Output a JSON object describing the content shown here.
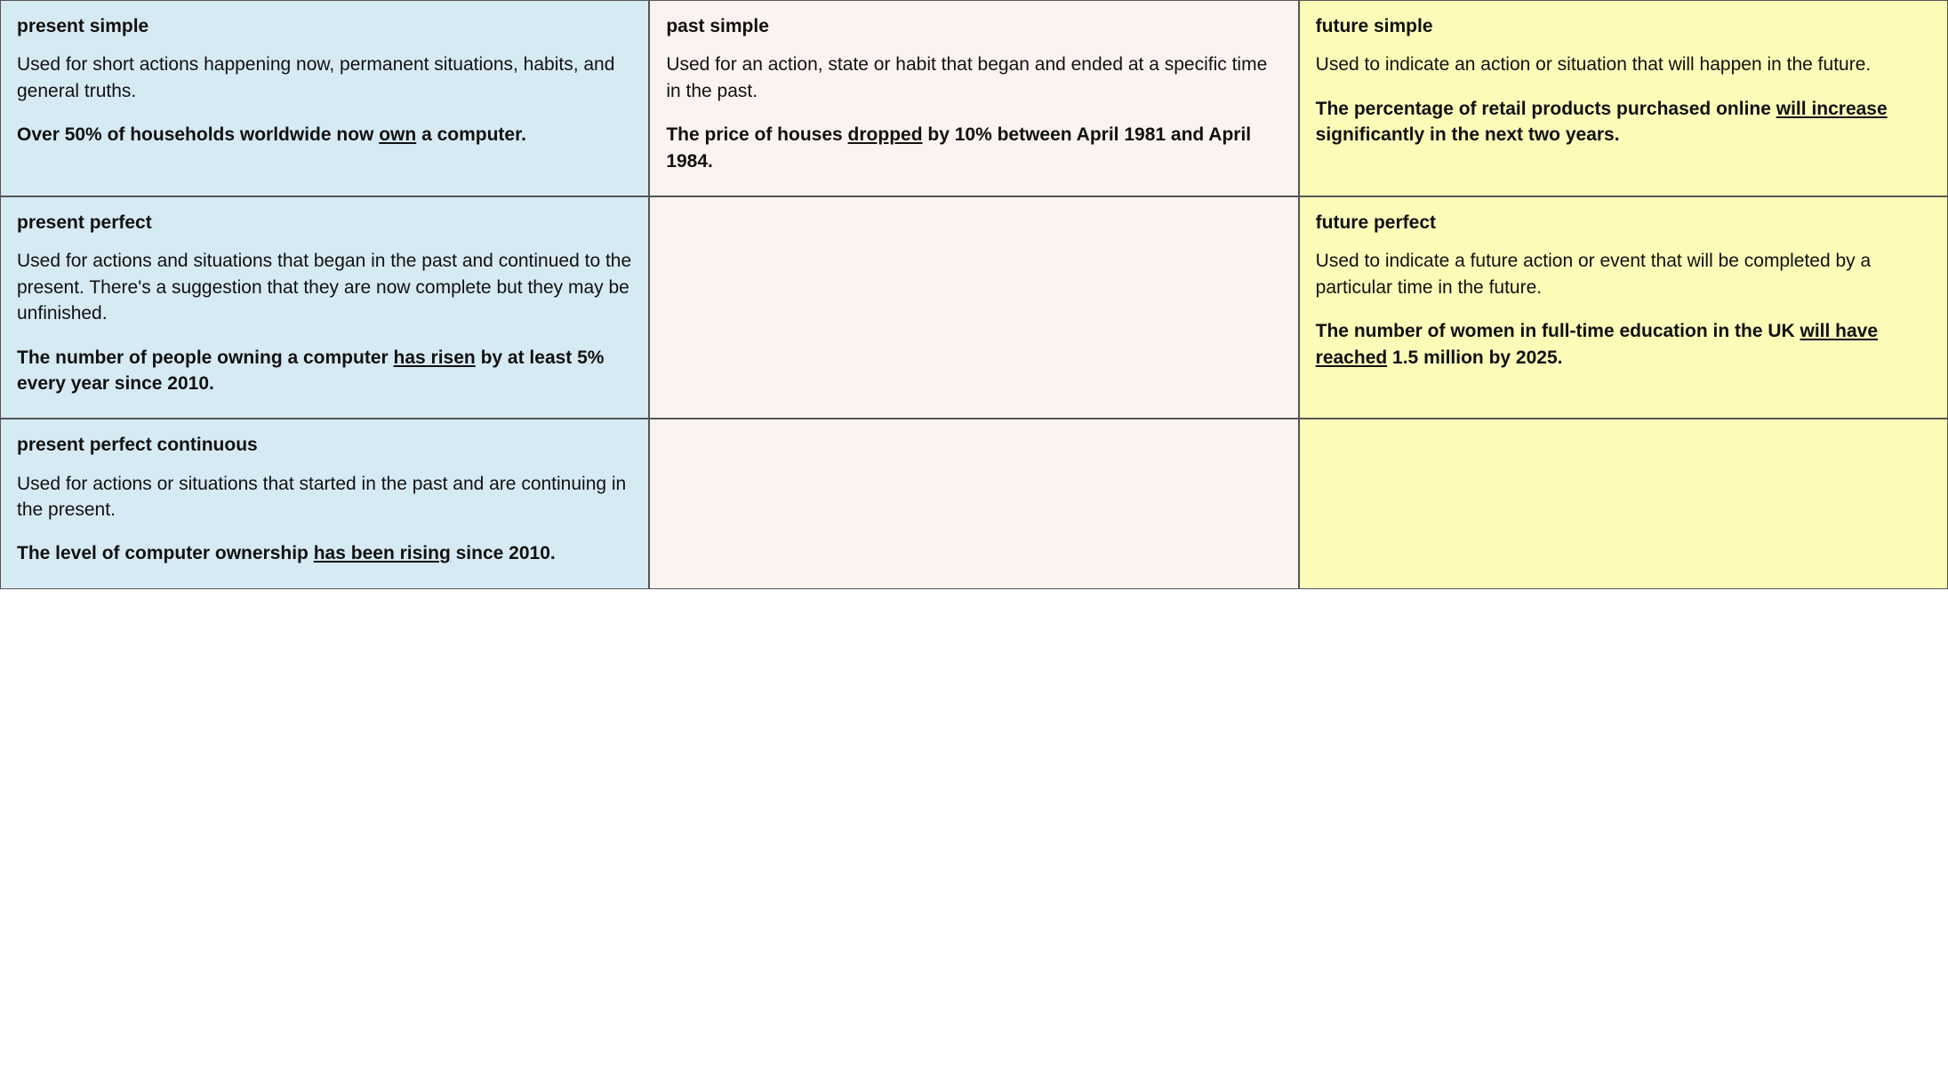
{
  "table": {
    "columns": [
      {
        "key": "present",
        "bg": "#d6eaf4"
      },
      {
        "key": "past",
        "bg": "#fbf3ef"
      },
      {
        "key": "future",
        "bg": "#fcfbb8"
      }
    ],
    "border_color": "#555555",
    "text_color": "#111111",
    "font_family": "Arial, Helvetica, sans-serif",
    "title_fontsize": 21,
    "body_fontsize": 21,
    "cells": {
      "r0c0": {
        "title": "present simple",
        "desc": "Used for short actions happening now, permanent situations, habits, and general truths.",
        "example_pre": "Over 50% of households worldwide now ",
        "example_u": "own",
        "example_post": " a computer."
      },
      "r0c1": {
        "title": "past simple",
        "desc": "Used for an action, state or habit that began and ended at a specific time in the past.",
        "example_pre": "The price of houses ",
        "example_u": "dropped",
        "example_post": " by 10% between April 1981 and April 1984."
      },
      "r0c2": {
        "title": "future simple",
        "desc": "Used to indicate an action or situation that will happen in the future.",
        "example_pre": "The percentage of retail products purchased online ",
        "example_u": "will increase",
        "example_post": " significantly in the next two years."
      },
      "r1c0": {
        "title": "present perfect",
        "desc": "Used for actions and situations that began in the past and continued to the present. There's a suggestion that they are now complete but they may be unfinished.",
        "example_pre": "The number of people owning a computer ",
        "example_u": "has risen",
        "example_post": " by at least 5% every year since 2010."
      },
      "r1c1": {
        "title": "",
        "desc": "",
        "example_pre": "",
        "example_u": "",
        "example_post": ""
      },
      "r1c2": {
        "title": "future perfect",
        "desc": "Used to indicate a future action or event that will be completed by a particular time in the future.",
        "example_pre": "The number of women in full-time education in the UK ",
        "example_u": "will have reached",
        "example_post": " 1.5 million by 2025."
      },
      "r2c0": {
        "title": "present perfect continuous",
        "desc": "Used for actions or situations that started in the past and are continuing in the present.",
        "example_pre": "The level of computer ownership ",
        "example_u": "has been rising",
        "example_post": " since 2010."
      },
      "r2c1": {
        "title": "",
        "desc": "",
        "example_pre": "",
        "example_u": "",
        "example_post": ""
      },
      "r2c2": {
        "title": "",
        "desc": "",
        "example_pre": "",
        "example_u": "",
        "example_post": ""
      }
    }
  }
}
